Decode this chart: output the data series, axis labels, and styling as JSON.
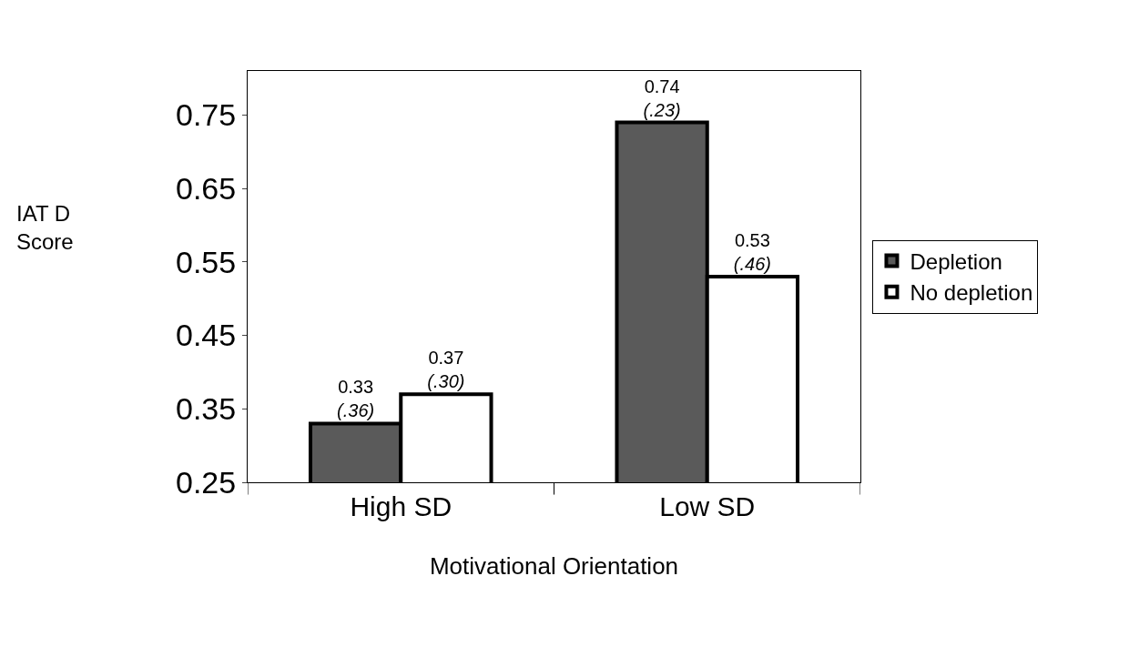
{
  "chart_data": {
    "type": "bar",
    "xlabel": "Motivational Orientation",
    "ylabel": "IAT D\nScore",
    "categories": [
      "High SD",
      "Low SD"
    ],
    "series": [
      {
        "name": "Depletion",
        "color": "#5a5a5a",
        "values": [
          0.33,
          0.74
        ],
        "value_labels": [
          "0.33\n(.36)",
          "0.74\n(.23)"
        ]
      },
      {
        "name": "No depletion",
        "color": "#ffffff",
        "values": [
          0.37,
          0.53
        ],
        "value_labels": [
          "0.37\n(.30)",
          "0.53\n(.46)"
        ]
      }
    ],
    "ylim": [
      0.25,
      0.81
    ],
    "yticks": [
      0.25,
      0.35,
      0.45,
      0.55,
      0.65,
      0.75
    ],
    "legend": "right"
  }
}
